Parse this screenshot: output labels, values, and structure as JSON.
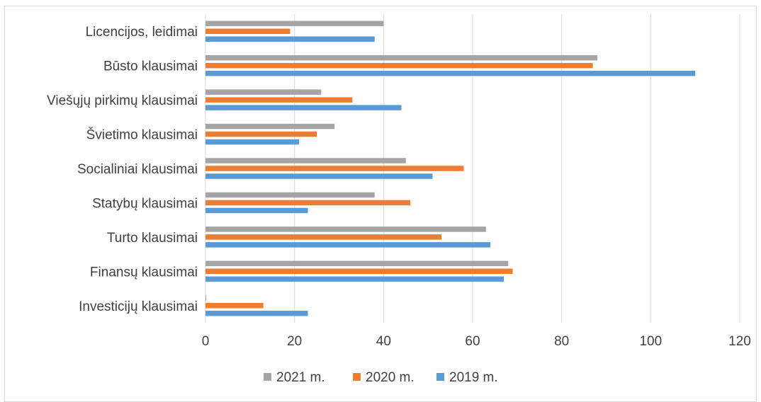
{
  "chart_data": {
    "type": "bar",
    "orientation": "horizontal",
    "categories": [
      "Licencijos, leidimai",
      "Būsto klausimai",
      "Viešųjų pirkimų klausimai",
      "Švietimo klausimai",
      "Socialiniai klausimai",
      "Statybų klausimai",
      "Turto klausimai",
      "Finansų klausimai",
      "Investicijų klausimai"
    ],
    "series": [
      {
        "name": "2021 m.",
        "color": "#a5a5a5",
        "values": [
          40,
          88,
          26,
          29,
          45,
          38,
          63,
          68,
          0
        ]
      },
      {
        "name": "2020 m.",
        "color": "#ed7d31",
        "values": [
          19,
          87,
          33,
          25,
          58,
          46,
          53,
          69,
          13
        ]
      },
      {
        "name": "2019 m.",
        "color": "#5b9bd5",
        "values": [
          38,
          110,
          44,
          21,
          51,
          23,
          64,
          67,
          23
        ]
      }
    ],
    "xlim": [
      0,
      120
    ],
    "xticks": [
      "0",
      "20",
      "40",
      "60",
      "80",
      "100",
      "120"
    ],
    "grid": true,
    "legend_position": "bottom",
    "title": "",
    "xlabel": "",
    "ylabel": ""
  }
}
